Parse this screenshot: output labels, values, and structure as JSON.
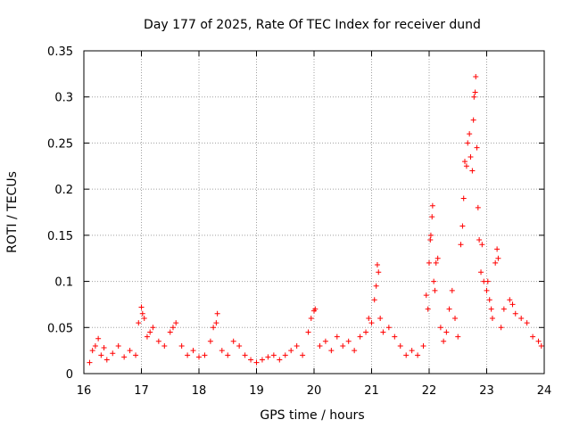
{
  "chart_data": {
    "type": "scatter",
    "title": "Day 177 of 2025, Rate Of TEC Index for receiver dund",
    "xlabel": "GPS time / hours",
    "ylabel": "ROTI / TECUs",
    "xlim": [
      16,
      24
    ],
    "ylim": [
      0,
      0.35
    ],
    "x_ticks": [
      16,
      17,
      18,
      19,
      20,
      21,
      22,
      23,
      24
    ],
    "x_tick_labels": [
      "16",
      "17",
      "18",
      "19",
      "20",
      "21",
      "22",
      "23",
      "24"
    ],
    "y_ticks": [
      0,
      0.05,
      0.1,
      0.15,
      0.2,
      0.25,
      0.3,
      0.35
    ],
    "y_tick_labels": [
      "0",
      "0.05",
      "0.1",
      "0.15",
      "0.2",
      "0.25",
      "0.3",
      "0.35"
    ],
    "grid": true,
    "marker": "+",
    "color": "#ff0000",
    "series": [
      {
        "name": "ROTI",
        "points": [
          [
            16.1,
            0.012
          ],
          [
            16.15,
            0.025
          ],
          [
            16.2,
            0.03
          ],
          [
            16.25,
            0.038
          ],
          [
            16.3,
            0.02
          ],
          [
            16.35,
            0.028
          ],
          [
            16.4,
            0.015
          ],
          [
            16.5,
            0.022
          ],
          [
            16.6,
            0.03
          ],
          [
            16.7,
            0.018
          ],
          [
            16.8,
            0.025
          ],
          [
            16.9,
            0.02
          ],
          [
            16.95,
            0.055
          ],
          [
            17.0,
            0.072
          ],
          [
            17.02,
            0.065
          ],
          [
            17.05,
            0.06
          ],
          [
            17.1,
            0.04
          ],
          [
            17.15,
            0.045
          ],
          [
            17.2,
            0.05
          ],
          [
            17.3,
            0.035
          ],
          [
            17.4,
            0.03
          ],
          [
            17.5,
            0.045
          ],
          [
            17.55,
            0.05
          ],
          [
            17.6,
            0.055
          ],
          [
            17.7,
            0.03
          ],
          [
            17.8,
            0.02
          ],
          [
            17.9,
            0.025
          ],
          [
            18.0,
            0.018
          ],
          [
            18.1,
            0.02
          ],
          [
            18.2,
            0.035
          ],
          [
            18.25,
            0.05
          ],
          [
            18.3,
            0.055
          ],
          [
            18.32,
            0.065
          ],
          [
            18.4,
            0.025
          ],
          [
            18.5,
            0.02
          ],
          [
            18.6,
            0.035
          ],
          [
            18.7,
            0.03
          ],
          [
            18.8,
            0.02
          ],
          [
            18.9,
            0.015
          ],
          [
            19.0,
            0.012
          ],
          [
            19.1,
            0.015
          ],
          [
            19.2,
            0.018
          ],
          [
            19.3,
            0.02
          ],
          [
            19.4,
            0.015
          ],
          [
            19.5,
            0.02
          ],
          [
            19.6,
            0.025
          ],
          [
            19.7,
            0.03
          ],
          [
            19.8,
            0.02
          ],
          [
            19.9,
            0.045
          ],
          [
            19.95,
            0.06
          ],
          [
            20.0,
            0.068
          ],
          [
            20.02,
            0.07
          ],
          [
            20.1,
            0.03
          ],
          [
            20.2,
            0.035
          ],
          [
            20.3,
            0.025
          ],
          [
            20.4,
            0.04
          ],
          [
            20.5,
            0.03
          ],
          [
            20.6,
            0.035
          ],
          [
            20.7,
            0.025
          ],
          [
            20.8,
            0.04
          ],
          [
            20.9,
            0.045
          ],
          [
            20.95,
            0.06
          ],
          [
            21.0,
            0.055
          ],
          [
            21.05,
            0.08
          ],
          [
            21.08,
            0.095
          ],
          [
            21.1,
            0.118
          ],
          [
            21.12,
            0.11
          ],
          [
            21.15,
            0.06
          ],
          [
            21.2,
            0.045
          ],
          [
            21.3,
            0.05
          ],
          [
            21.4,
            0.04
          ],
          [
            21.5,
            0.03
          ],
          [
            21.6,
            0.02
          ],
          [
            21.7,
            0.025
          ],
          [
            21.8,
            0.02
          ],
          [
            21.9,
            0.03
          ],
          [
            21.95,
            0.085
          ],
          [
            21.98,
            0.07
          ],
          [
            22.0,
            0.12
          ],
          [
            22.02,
            0.145
          ],
          [
            22.03,
            0.15
          ],
          [
            22.05,
            0.17
          ],
          [
            22.06,
            0.182
          ],
          [
            22.08,
            0.1
          ],
          [
            22.1,
            0.09
          ],
          [
            22.12,
            0.12
          ],
          [
            22.15,
            0.125
          ],
          [
            22.2,
            0.05
          ],
          [
            22.25,
            0.035
          ],
          [
            22.3,
            0.045
          ],
          [
            22.35,
            0.07
          ],
          [
            22.4,
            0.09
          ],
          [
            22.45,
            0.06
          ],
          [
            22.5,
            0.04
          ],
          [
            22.55,
            0.14
          ],
          [
            22.58,
            0.16
          ],
          [
            22.6,
            0.19
          ],
          [
            22.62,
            0.23
          ],
          [
            22.65,
            0.225
          ],
          [
            22.67,
            0.25
          ],
          [
            22.7,
            0.26
          ],
          [
            22.72,
            0.235
          ],
          [
            22.75,
            0.22
          ],
          [
            22.77,
            0.275
          ],
          [
            22.78,
            0.3
          ],
          [
            22.8,
            0.305
          ],
          [
            22.81,
            0.322
          ],
          [
            22.83,
            0.245
          ],
          [
            22.85,
            0.18
          ],
          [
            22.87,
            0.145
          ],
          [
            22.9,
            0.11
          ],
          [
            22.92,
            0.14
          ],
          [
            22.95,
            0.1
          ],
          [
            23.0,
            0.09
          ],
          [
            23.02,
            0.1
          ],
          [
            23.05,
            0.08
          ],
          [
            23.08,
            0.07
          ],
          [
            23.1,
            0.06
          ],
          [
            23.15,
            0.12
          ],
          [
            23.18,
            0.135
          ],
          [
            23.2,
            0.125
          ],
          [
            23.25,
            0.05
          ],
          [
            23.3,
            0.07
          ],
          [
            23.4,
            0.08
          ],
          [
            23.45,
            0.075
          ],
          [
            23.5,
            0.065
          ],
          [
            23.6,
            0.06
          ],
          [
            23.7,
            0.055
          ],
          [
            23.8,
            0.04
          ],
          [
            23.9,
            0.035
          ],
          [
            23.95,
            0.03
          ]
        ]
      }
    ]
  }
}
